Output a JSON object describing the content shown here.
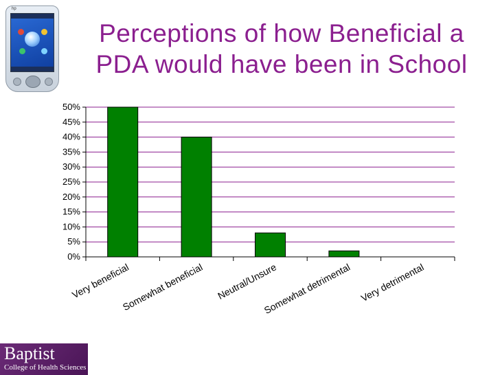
{
  "header": {
    "title_line1": "Perceptions of how Beneficial a",
    "title_line2": "PDA would have been in School"
  },
  "device": {
    "brand": "hp"
  },
  "logo": {
    "main": "Baptist",
    "sub": "College of Health Sciences"
  },
  "colors": {
    "title": "#8b1f8f",
    "bar": "#008000",
    "grid": "#8b1f8f",
    "logo_bg": "#5c1f69"
  },
  "chart_data": {
    "type": "bar",
    "categories": [
      "Very beneficial",
      "Somewhat beneficial",
      "Neutral/Unsure",
      "Somewhat detrimental",
      "Very detrimental"
    ],
    "values": [
      50,
      40,
      8,
      2,
      0
    ],
    "ylim": [
      0,
      50
    ],
    "yticks": [
      0,
      5,
      10,
      15,
      20,
      25,
      30,
      35,
      40,
      45,
      50
    ],
    "ytick_labels": [
      "0%",
      "5%",
      "10%",
      "15%",
      "20%",
      "25%",
      "30%",
      "35%",
      "40%",
      "45%",
      "50%"
    ],
    "grid": true,
    "legend": false
  }
}
